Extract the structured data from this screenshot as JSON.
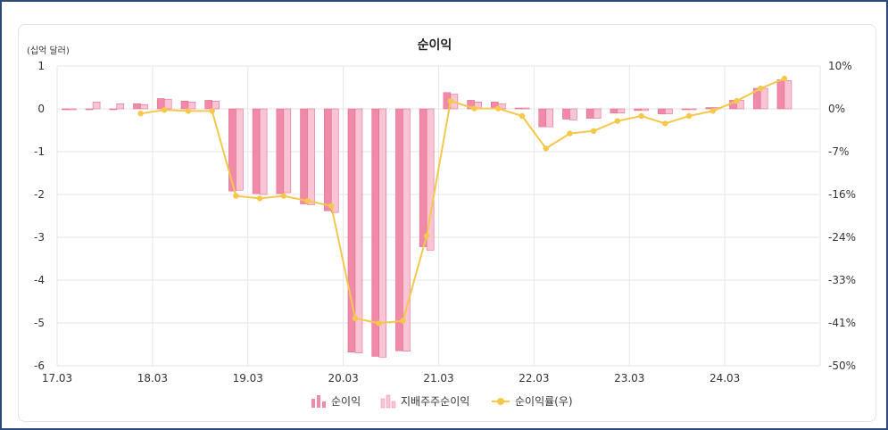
{
  "chart_data": {
    "type": "bar+line",
    "title": "순이익",
    "y_unit_label": "(십억 달러)",
    "y_left": {
      "ticks": [
        "1",
        "0",
        "-1",
        "-2",
        "-3",
        "-4",
        "-5",
        "-6"
      ],
      "range": [
        -6,
        1
      ]
    },
    "y_right": {
      "ticks": [
        "10%",
        "0%",
        "-7%",
        "-16%",
        "-24%",
        "-33%",
        "-41%",
        "-50%"
      ],
      "range": [
        -50,
        10
      ]
    },
    "x_tick_labels": [
      "17.03",
      "18.03",
      "19.03",
      "20.03",
      "21.03",
      "22.03",
      "23.03",
      "24.03"
    ],
    "periods": [
      "17.03",
      "17.06",
      "17.09",
      "17.12",
      "18.03",
      "18.06",
      "18.09",
      "18.12",
      "19.03",
      "19.06",
      "19.09",
      "19.12",
      "20.03",
      "20.06",
      "20.09",
      "20.12",
      "21.03",
      "21.06",
      "21.09",
      "21.12",
      "22.03",
      "22.06",
      "22.09",
      "22.12",
      "23.03",
      "23.06",
      "23.09",
      "23.12",
      "24.03",
      "24.06",
      "24.09",
      "24.12"
    ],
    "series": [
      {
        "name": "순이익",
        "type": "bar",
        "color": "#f08aa8",
        "values": [
          -0.02,
          0.0,
          0.0,
          0.12,
          0.24,
          0.18,
          0.2,
          -1.92,
          -1.98,
          -1.98,
          -2.22,
          -2.38,
          -5.68,
          -5.78,
          -5.65,
          -3.22,
          0.38,
          0.2,
          0.16,
          0.02,
          -0.42,
          -0.24,
          -0.22,
          -0.1,
          -0.04,
          -0.12,
          -0.02,
          0.03,
          0.2,
          0.48,
          0.68,
          null
        ]
      },
      {
        "name": "지배주주순이익",
        "type": "bar",
        "color": "#f9c4d4",
        "values": [
          0.0,
          0.16,
          0.12,
          0.1,
          0.22,
          0.16,
          0.18,
          -1.9,
          -2.0,
          -1.96,
          -2.24,
          -2.42,
          -5.7,
          -5.8,
          -5.66,
          -3.3,
          0.34,
          0.16,
          0.12,
          0.02,
          -0.42,
          -0.26,
          -0.22,
          -0.1,
          -0.04,
          -0.12,
          -0.02,
          0.03,
          0.2,
          0.48,
          0.66,
          null
        ]
      },
      {
        "name": "순이익률(우)",
        "type": "line",
        "color": "#f5c84c",
        "axis": "right",
        "values": [
          null,
          null,
          null,
          0.5,
          1.2,
          1.0,
          1.0,
          -16.0,
          -16.5,
          -16.0,
          -17.0,
          -18.0,
          -40.5,
          -41.5,
          -41.0,
          -24.0,
          3.0,
          1.5,
          1.5,
          0.0,
          -6.5,
          -3.5,
          -3.0,
          -1.0,
          0.0,
          -1.5,
          0.0,
          1.0,
          3.0,
          5.5,
          7.5,
          null
        ]
      }
    ],
    "grid": true,
    "legend_position": "bottom"
  }
}
